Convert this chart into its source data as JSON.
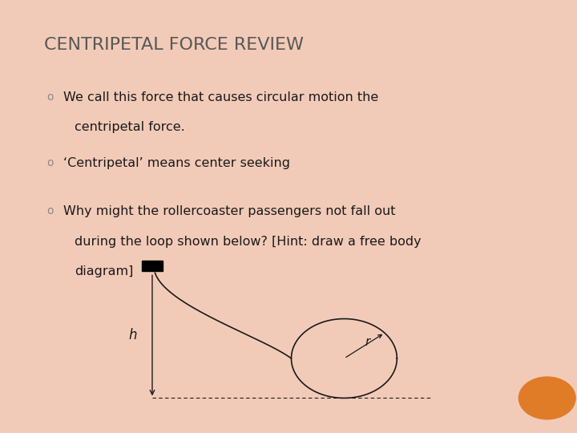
{
  "title_C": "C",
  "title_rest1": "ENTRIPETAL ",
  "title_F": "F",
  "title_rest2": "ORCE ",
  "title_R": "R",
  "title_rest3": "EVIEW",
  "bullet1_line1": "We call this force that causes circular motion the",
  "bullet1_line2": "centripetal force.",
  "bullet2": "‘Centripetal’ means center seeking",
  "bullet3_line1": "Why might the rollercoaster passengers not fall out",
  "bullet3_line2": "during the loop shown below? [Hint: draw a free body",
  "bullet3_line3": "diagram]",
  "bg_color": "#ffffff",
  "border_color": "#f2cbb8",
  "title_color": "#595959",
  "text_color": "#1a1a1a",
  "bullet_color": "#888888",
  "diagram_color": "#1a1a1a",
  "orange_circle_color": "#e07b28",
  "h_label": "h",
  "r_label": "r",
  "border_thick": 12
}
